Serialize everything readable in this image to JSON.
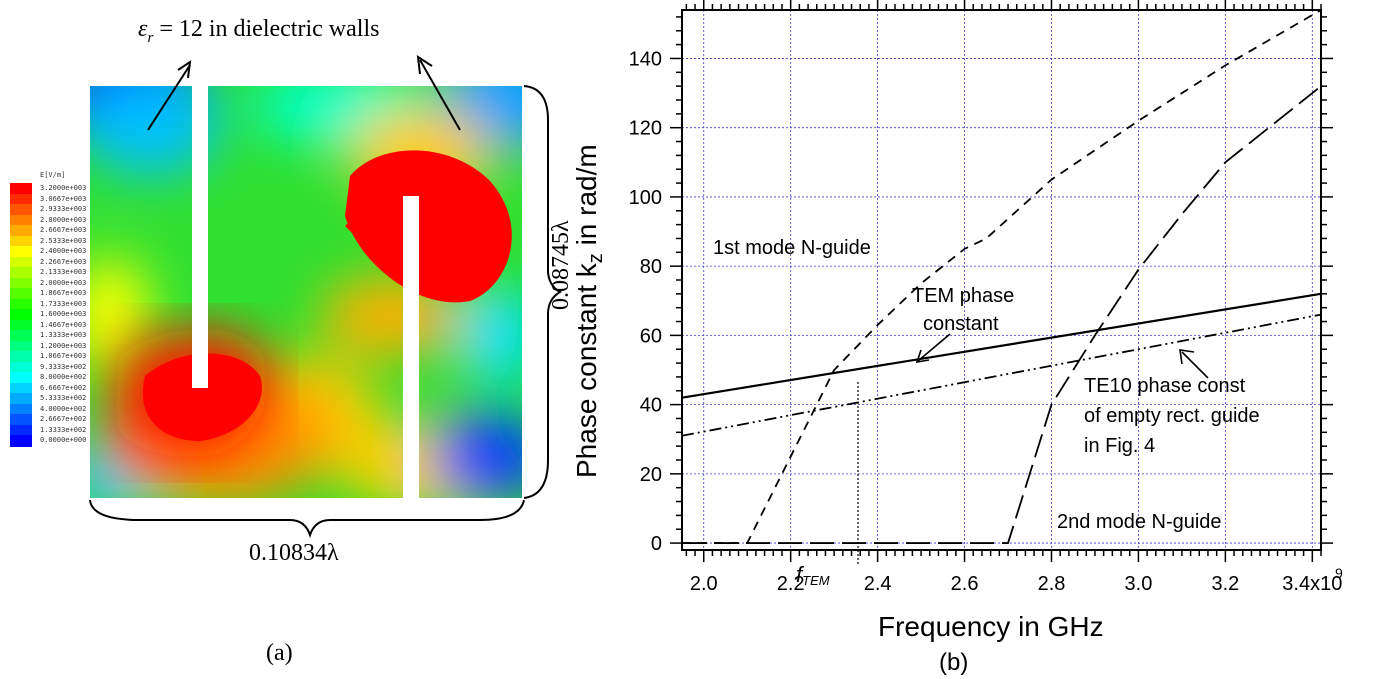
{
  "panel_a": {
    "annotation": "εr = 12 in dielectric walls",
    "annotation_eps": "ε",
    "annotation_sub": "r",
    "annotation_rest": " = 12 in dielectric walls",
    "width_label": "0.10834λ",
    "height_label": "0.08745λ",
    "panel_label": "(a)",
    "colorbar_title": "E[V/m]",
    "colorbar_labels": [
      "3.2000e+003",
      "3.0667e+003",
      "2.9333e+003",
      "2.8000e+003",
      "2.6667e+003",
      "2.5333e+003",
      "2.4000e+003",
      "2.2667e+003",
      "2.1333e+003",
      "2.0000e+003",
      "1.8667e+003",
      "1.7333e+003",
      "1.6000e+003",
      "1.4667e+003",
      "1.3333e+003",
      "1.2000e+003",
      "1.0667e+003",
      "9.3333e+002",
      "8.0000e+002",
      "6.6667e+002",
      "5.3333e+002",
      "4.0000e+002",
      "2.6667e+002",
      "1.3333e+002",
      "0.0000e+000"
    ],
    "colorbar_colors": [
      "#ff0000",
      "#ff2a00",
      "#ff5500",
      "#ff7f00",
      "#ffaa00",
      "#ffd400",
      "#ffff00",
      "#d4ff00",
      "#aaff00",
      "#7fff00",
      "#55ff00",
      "#2aff00",
      "#00ff00",
      "#00ff2a",
      "#00ff55",
      "#00ff7f",
      "#00ffaa",
      "#00ffd4",
      "#00ffff",
      "#00d4ff",
      "#00aaff",
      "#007fff",
      "#0055ff",
      "#002aff",
      "#0000ff"
    ]
  },
  "panel_b": {
    "panel_label": "(b)",
    "x_exponent": "9",
    "ylabel_main": "Phase constant k",
    "ylabel_sub": "z",
    "ylabel_rest": " in rad/m",
    "f_tem": "f",
    "f_tem_sub": "TEM",
    "annotations": {
      "first_mode": "1st mode N-guide",
      "tem_line1": "TEM phase",
      "tem_line2": "constant",
      "te10_line1": "TE10 phase const",
      "te10_line2": "of empty rect. guide",
      "te10_line3": "in Fig. 4",
      "second_mode": "2nd mode N-guide"
    }
  },
  "chart_data": {
    "type": "line",
    "xlabel": "Frequency in GHz",
    "ylabel": "Phase constant kz in rad/m",
    "xlim": [
      1.95,
      3.42
    ],
    "ylim": [
      -2,
      154
    ],
    "x_ticks": [
      "2.0",
      "2.2",
      "2.4",
      "2.6",
      "2.8",
      "3.0",
      "3.2",
      "3.4x10"
    ],
    "x_tick_values": [
      2.0,
      2.2,
      2.4,
      2.6,
      2.8,
      3.0,
      3.2,
      3.4
    ],
    "y_ticks": [
      0,
      20,
      40,
      60,
      80,
      100,
      120,
      140
    ],
    "grid": true,
    "series": [
      {
        "name": "TEM phase constant",
        "style": "solid",
        "x": [
          1.95,
          3.42
        ],
        "y": [
          42,
          72
        ]
      },
      {
        "name": "TE10 phase const of empty rect. guide in Fig. 4",
        "style": "dashdotdot",
        "x": [
          1.95,
          3.42
        ],
        "y": [
          31,
          66
        ]
      },
      {
        "name": "1st mode N-guide",
        "style": "dashed",
        "x": [
          1.95,
          2.1,
          2.2,
          2.3,
          2.4,
          2.5,
          2.6,
          2.65,
          2.8,
          3.0,
          3.2,
          3.42
        ],
        "y": [
          0,
          0,
          25,
          50,
          63,
          75,
          85,
          88,
          105,
          122,
          138,
          154
        ]
      },
      {
        "name": "2nd mode N-guide",
        "style": "longdash",
        "x": [
          1.95,
          2.7,
          2.8,
          2.9,
          3.0,
          3.1,
          3.2,
          3.3,
          3.42
        ],
        "y": [
          0,
          0,
          40,
          60,
          79,
          95,
          110,
          120,
          132
        ]
      }
    ]
  }
}
